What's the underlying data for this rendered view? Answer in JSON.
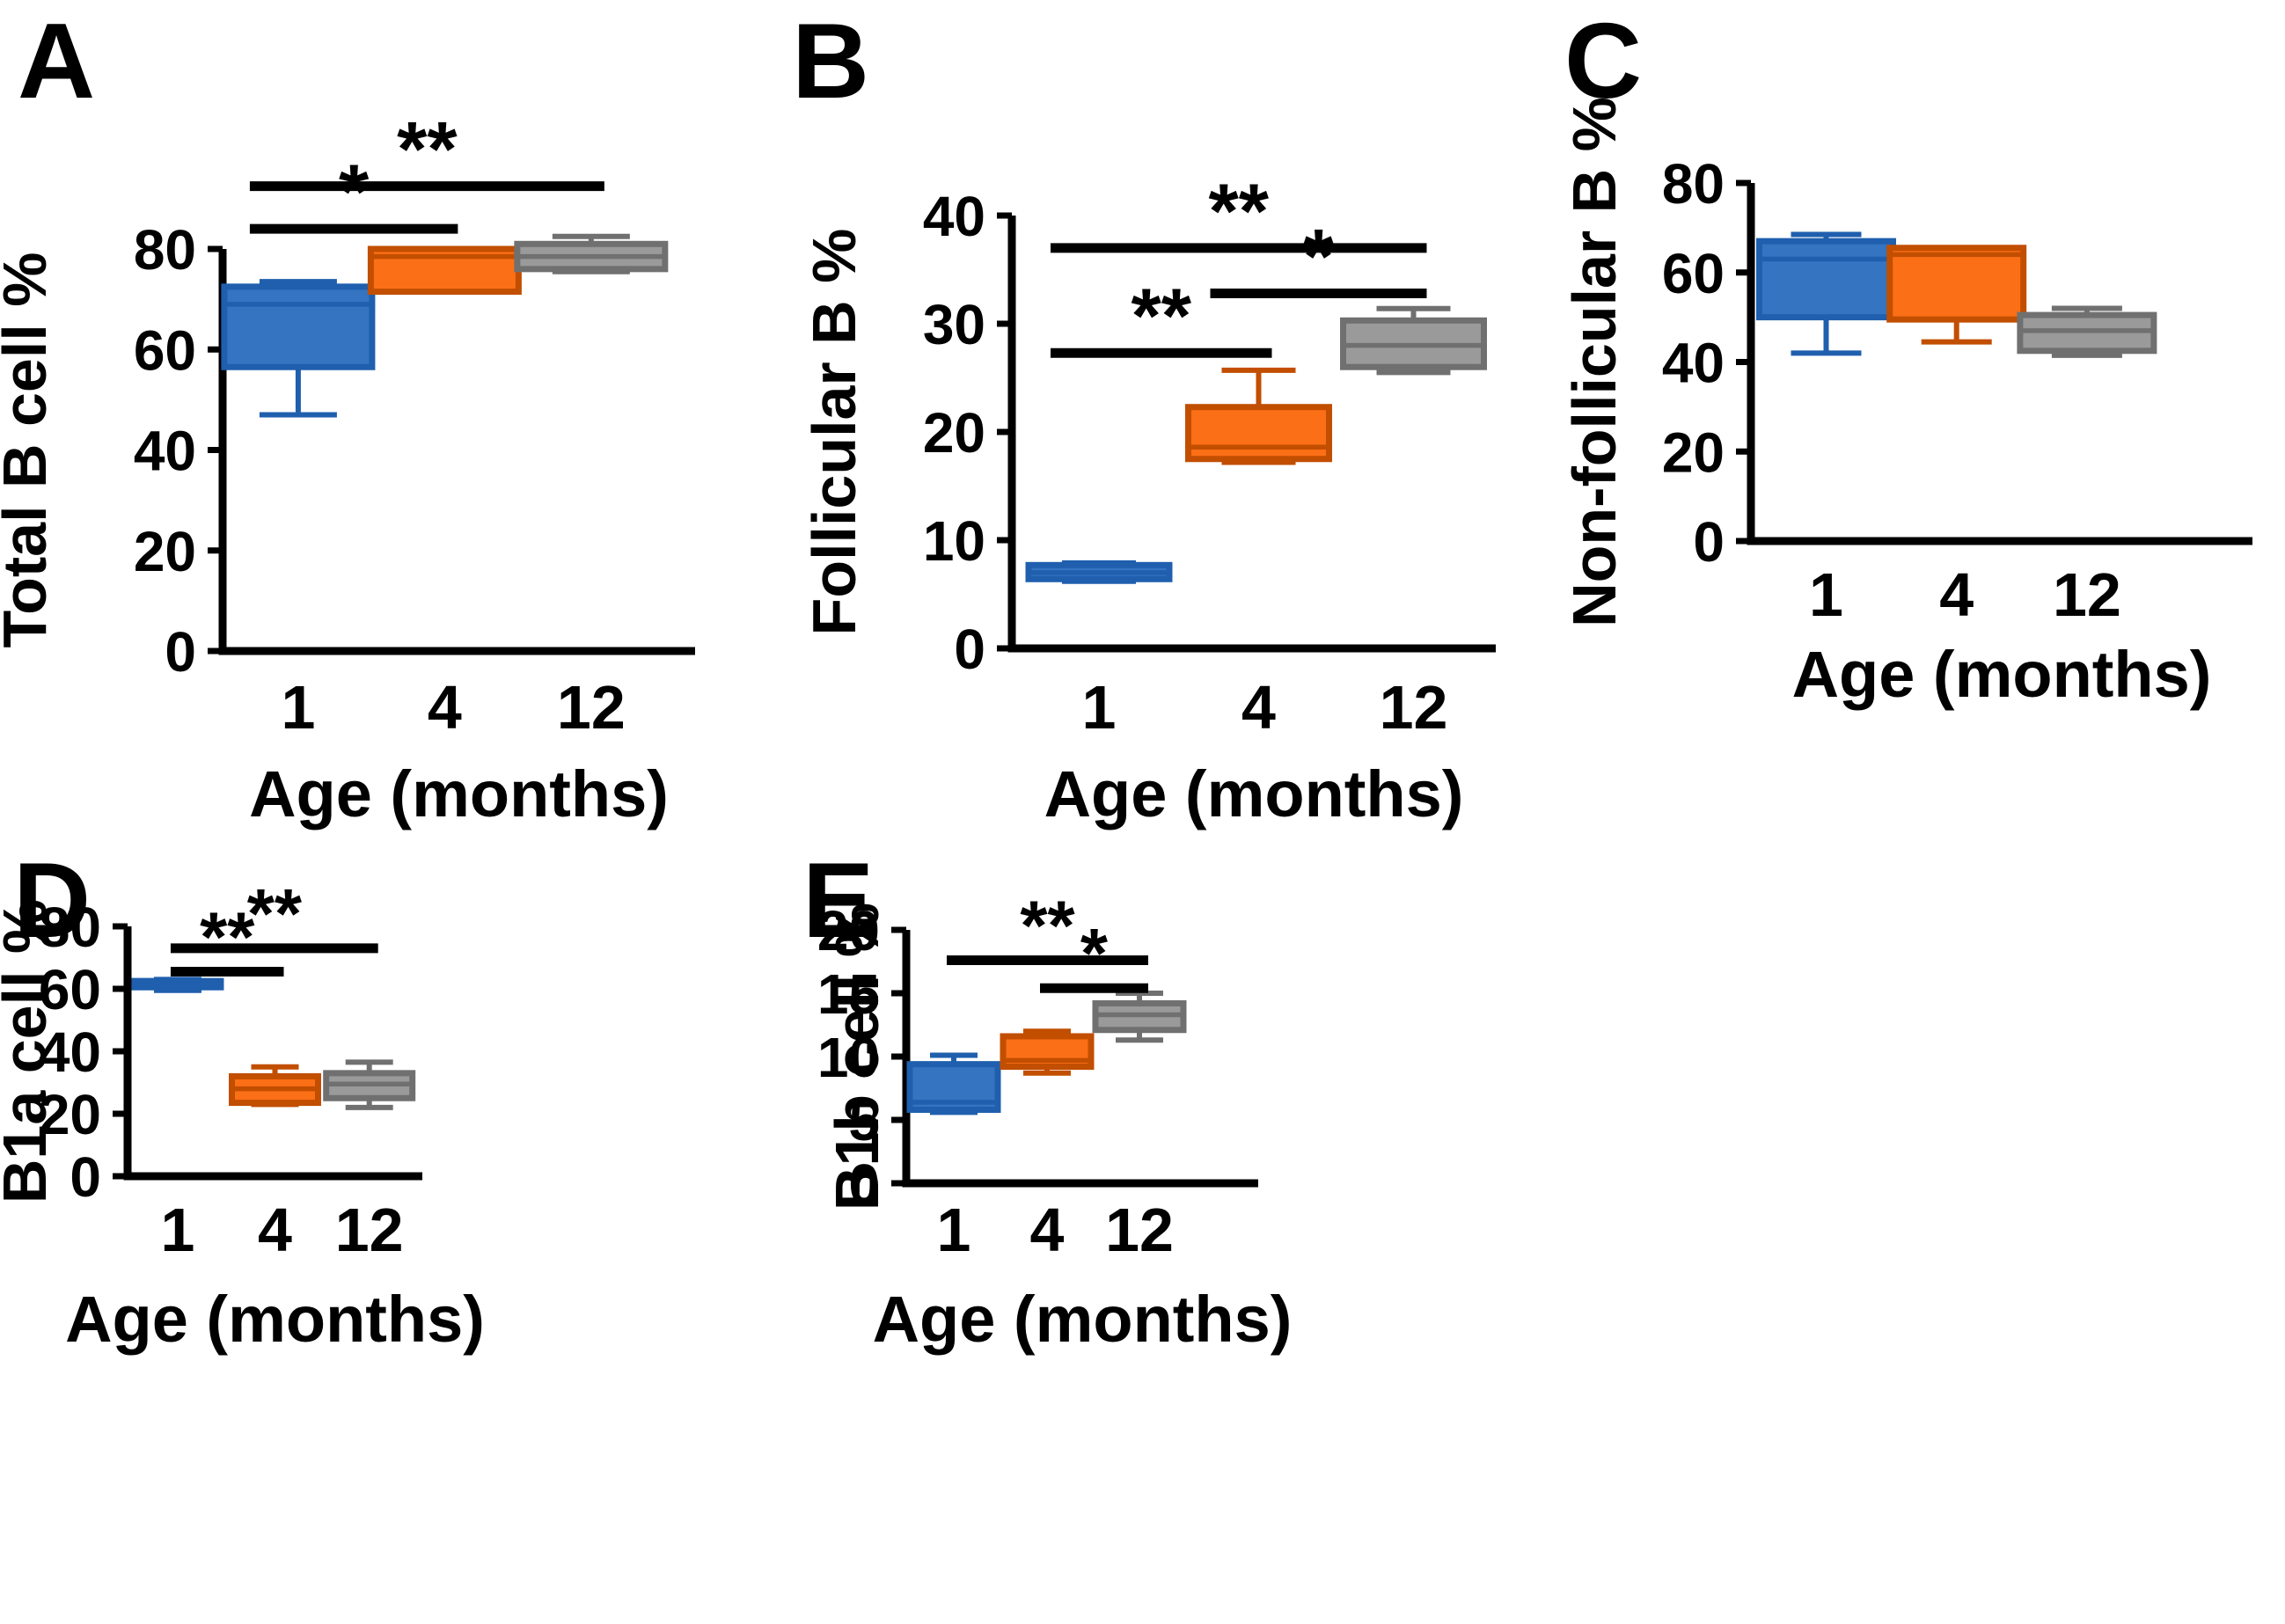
{
  "figure_title": "",
  "colors": {
    "blue_fill": "#3474C0",
    "blue_edge": "#1F5FAE",
    "orange_fill": "#FB6F16",
    "orange_edge": "#C24E00",
    "gray_fill": "#9A9A9A",
    "gray_edge": "#707070",
    "axis": "#000000"
  },
  "chart_data": [
    {
      "type": "box",
      "panel_label": "A",
      "ylabel": "Total B cell %",
      "xlabel": "Age (months)",
      "categories": [
        "1",
        "4",
        "12"
      ],
      "yticks": [
        0,
        20,
        40,
        60,
        80
      ],
      "ylim": [
        0,
        80
      ],
      "legend": "none",
      "series": [
        {
          "name": "1 month",
          "color": "blue",
          "min": 47.0,
          "q1": 56.5,
          "median": 69.0,
          "q3": 72.5,
          "max": 73.5
        },
        {
          "name": "4 months",
          "color": "orange",
          "min": 71.5,
          "q1": 71.5,
          "median": 78.5,
          "q3": 80.0,
          "max": 80.0
        },
        {
          "name": "12 months",
          "color": "gray",
          "min": 75.5,
          "q1": 76.0,
          "median": 78.5,
          "q3": 81.0,
          "max": 82.5
        }
      ],
      "significance": [
        {
          "from": 0,
          "to": 1,
          "label": "*",
          "y": 84.0
        },
        {
          "from": 0,
          "to": 2,
          "label": "**",
          "y": 92.5
        }
      ]
    },
    {
      "type": "box",
      "panel_label": "B",
      "ylabel": "Follicular B %",
      "xlabel": "Age (months)",
      "categories": [
        "1",
        "4",
        "12"
      ],
      "yticks": [
        0,
        10,
        20,
        30,
        40
      ],
      "ylim": [
        0,
        40
      ],
      "legend": "none",
      "series": [
        {
          "name": "1 month",
          "color": "blue",
          "min": 6.2,
          "q1": 6.4,
          "median": 7.0,
          "q3": 7.7,
          "max": 7.9
        },
        {
          "name": "4 months",
          "color": "orange",
          "min": 17.2,
          "q1": 17.5,
          "median": 18.6,
          "q3": 22.3,
          "max": 25.7
        },
        {
          "name": "12 months",
          "color": "gray",
          "min": 25.5,
          "q1": 26.0,
          "median": 28.0,
          "q3": 30.3,
          "max": 31.4
        }
      ],
      "significance": [
        {
          "from": 0,
          "to": 1,
          "label": "**",
          "y": 27.3
        },
        {
          "from": 1,
          "to": 2,
          "label": "*",
          "y": 32.8
        },
        {
          "from": 0,
          "to": 2,
          "label": "**",
          "y": 37.0
        }
      ]
    },
    {
      "type": "box",
      "panel_label": "C",
      "ylabel": "Non-follicular B %",
      "xlabel": "Age (months)",
      "categories": [
        "1",
        "4",
        "12"
      ],
      "yticks": [
        0,
        20,
        40,
        60,
        80
      ],
      "ylim": [
        0,
        80
      ],
      "legend": "none",
      "series": [
        {
          "name": "1 month",
          "color": "blue",
          "min": 42.0,
          "q1": 50.0,
          "median": 63.0,
          "q3": 67.0,
          "max": 68.5
        },
        {
          "name": "4 months",
          "color": "orange",
          "min": 44.5,
          "q1": 49.5,
          "median": 64.0,
          "q3": 65.5,
          "max": 65.5
        },
        {
          "name": "12 months",
          "color": "gray",
          "min": 41.5,
          "q1": 42.5,
          "median": 47.0,
          "q3": 50.5,
          "max": 52.0
        }
      ],
      "significance": []
    },
    {
      "type": "box",
      "panel_label": "D",
      "ylabel": "B1a cell %",
      "xlabel": "Age (months)",
      "categories": [
        "1",
        "4",
        "12"
      ],
      "yticks": [
        0,
        20,
        40,
        60,
        80
      ],
      "ylim": [
        0,
        80
      ],
      "legend": "none",
      "series": [
        {
          "name": "1 month",
          "color": "blue",
          "min": 59.5,
          "q1": 60.5,
          "median": 61.5,
          "q3": 62.5,
          "max": 63.0
        },
        {
          "name": "4 months",
          "color": "orange",
          "min": 23.0,
          "q1": 23.5,
          "median": 28.0,
          "q3": 32.0,
          "max": 35.0
        },
        {
          "name": "12 months",
          "color": "gray",
          "min": 22.0,
          "q1": 25.0,
          "median": 29.5,
          "q3": 33.0,
          "max": 36.5
        }
      ],
      "significance": [
        {
          "from": 0,
          "to": 1,
          "label": "**",
          "y": 65.5
        },
        {
          "from": 0,
          "to": 2,
          "label": "**",
          "y": 73.0
        }
      ]
    },
    {
      "type": "box",
      "panel_label": "E",
      "ylabel": "B1b cell %",
      "xlabel": "Age (months)",
      "categories": [
        "1",
        "4",
        "12"
      ],
      "yticks": [
        0,
        5,
        10,
        15,
        20
      ],
      "ylim": [
        0,
        20
      ],
      "legend": "none",
      "series": [
        {
          "name": "1 month",
          "color": "blue",
          "min": 5.6,
          "q1": 5.8,
          "median": 6.4,
          "q3": 9.4,
          "max": 10.1
        },
        {
          "name": "4 months",
          "color": "orange",
          "min": 8.7,
          "q1": 9.2,
          "median": 9.7,
          "q3": 11.6,
          "max": 12.0
        },
        {
          "name": "12 months",
          "color": "gray",
          "min": 11.3,
          "q1": 12.1,
          "median": 13.3,
          "q3": 14.2,
          "max": 15.0
        }
      ],
      "significance": [
        {
          "from": 1,
          "to": 2,
          "label": "*",
          "y": 15.4
        },
        {
          "from": 0,
          "to": 2,
          "label": "**",
          "y": 17.6
        }
      ]
    }
  ]
}
